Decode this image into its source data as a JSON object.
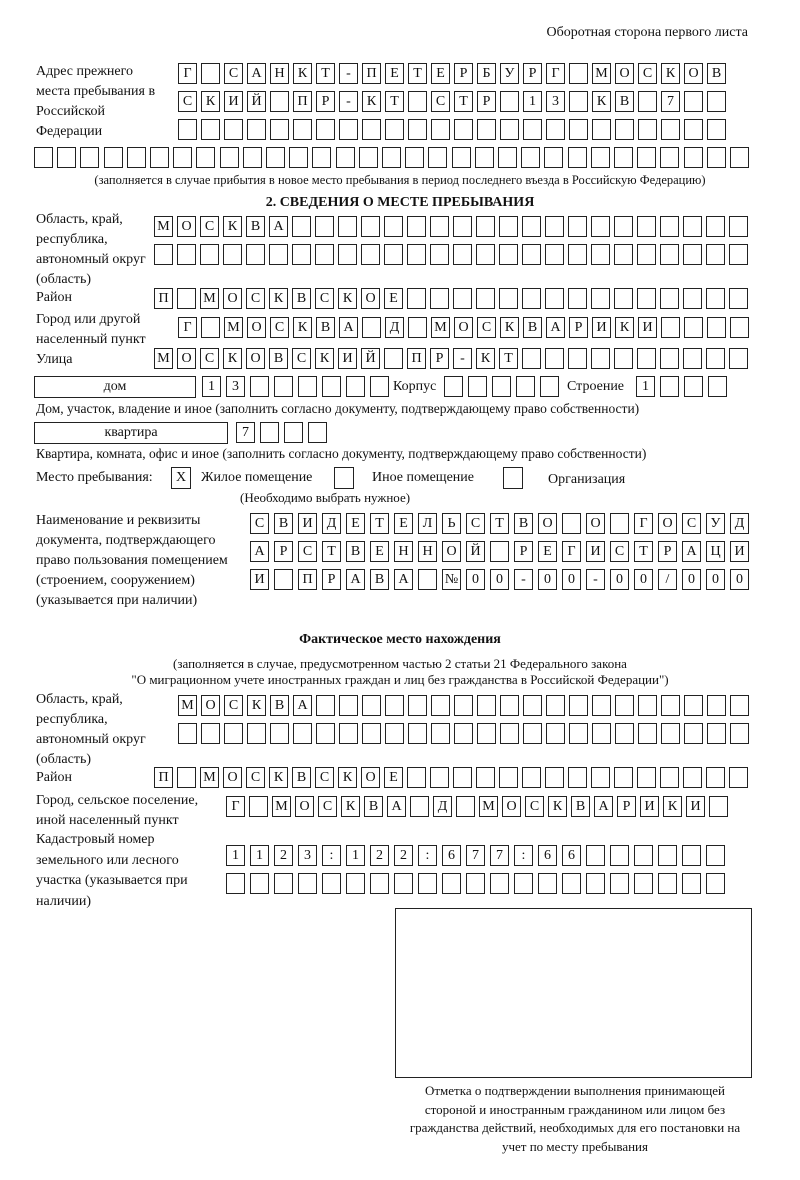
{
  "header": "Оборотная сторона первого листа",
  "prev_address": {
    "label": "Адрес прежнего места пребывания в Российской Федерации",
    "rows": [
      [
        "Г",
        "",
        "С",
        "А",
        "Н",
        "К",
        "Т",
        "-",
        "П",
        "Е",
        "Т",
        "Е",
        "Р",
        "Б",
        "У",
        "Р",
        "Г",
        "",
        "М",
        "О",
        "С",
        "К",
        "О",
        "В"
      ],
      [
        "С",
        "К",
        "И",
        "Й",
        "",
        "П",
        "Р",
        "-",
        "К",
        "Т",
        "",
        "С",
        "Т",
        "Р",
        "",
        "1",
        "3",
        "",
        "К",
        "В",
        "",
        "7",
        "",
        ""
      ],
      [
        "",
        "",
        "",
        "",
        "",
        "",
        "",
        "",
        "",
        "",
        "",
        "",
        "",
        "",
        "",
        "",
        "",
        "",
        "",
        "",
        "",
        "",
        "",
        ""
      ],
      [
        "",
        "",
        "",
        "",
        "",
        "",
        "",
        "",
        "",
        "",
        "",
        "",
        "",
        "",
        "",
        "",
        "",
        "",
        "",
        "",
        "",
        "",
        "",
        "",
        "",
        "",
        "",
        "",
        "",
        "",
        ""
      ]
    ],
    "note": "(заполняется в случае прибытия в новое место пребывания в период последнего въезда в Российскую Федерацию)"
  },
  "section2": {
    "title": "2. СВЕДЕНИЯ О МЕСТЕ ПРЕБЫВАНИЯ",
    "region_label": "Область, край, республика, автономный округ (область)",
    "region_rows": [
      [
        "М",
        "О",
        "С",
        "К",
        "В",
        "А",
        "",
        "",
        "",
        "",
        "",
        "",
        "",
        "",
        "",
        "",
        "",
        "",
        "",
        "",
        "",
        "",
        "",
        "",
        "",
        ""
      ],
      [
        "",
        "",
        "",
        "",
        "",
        "",
        "",
        "",
        "",
        "",
        "",
        "",
        "",
        "",
        "",
        "",
        "",
        "",
        "",
        "",
        "",
        "",
        "",
        "",
        "",
        ""
      ]
    ],
    "district_label": "Район",
    "district_row": [
      "П",
      "",
      "М",
      "О",
      "С",
      "К",
      "В",
      "С",
      "К",
      "О",
      "Е",
      "",
      "",
      "",
      "",
      "",
      "",
      "",
      "",
      "",
      "",
      "",
      "",
      "",
      "",
      ""
    ],
    "city_label": "Город или другой населенный пункт",
    "city_row": [
      "Г",
      "",
      "М",
      "О",
      "С",
      "К",
      "В",
      "А",
      "",
      "Д",
      "",
      "М",
      "О",
      "С",
      "К",
      "В",
      "А",
      "Р",
      "И",
      "К",
      "И",
      "",
      "",
      "",
      ""
    ],
    "street_label": "Улица",
    "street_row": [
      "М",
      "О",
      "С",
      "К",
      "О",
      "В",
      "С",
      "К",
      "И",
      "Й",
      "",
      "П",
      "Р",
      "-",
      "К",
      "Т",
      "",
      "",
      "",
      "",
      "",
      "",
      "",
      "",
      "",
      ""
    ],
    "house_type": "дом",
    "house_cells": [
      "1",
      "3",
      "",
      "",
      "",
      "",
      "",
      ""
    ],
    "korpus_label": "Корпус",
    "korpus_cells": [
      "",
      "",
      "",
      "",
      ""
    ],
    "building_label": "Строение",
    "building_cells": [
      "1",
      "",
      "",
      ""
    ],
    "house_note": "Дом, участок, владение и иное (заполнить согласно документу, подтверждающему право собственности)",
    "apt_type": "квартира",
    "apt_cells": [
      "7",
      "",
      "",
      ""
    ],
    "apt_note": "Квартира, комната, офис и иное (заполнить согласно документу, подтверждающему право собственности)",
    "stay_label": "Место пребывания:",
    "options": [
      {
        "label": "Жилое помещение",
        "mark": "Х"
      },
      {
        "label": "Иное помещение",
        "mark": ""
      },
      {
        "label": "Организация",
        "mark": ""
      }
    ],
    "choose_note": "(Необходимо выбрать нужное)",
    "doc_label": "Наименование и реквизиты документа, подтверждающего право пользования помещением (строением, сооружением) (указывается при наличии)",
    "doc_rows": [
      [
        "С",
        "В",
        "И",
        "Д",
        "Е",
        "Т",
        "Е",
        "Л",
        "Ь",
        "С",
        "Т",
        "В",
        "О",
        "",
        "О",
        "",
        "Г",
        "О",
        "С",
        "У",
        "Д"
      ],
      [
        "А",
        "Р",
        "С",
        "Т",
        "В",
        "Е",
        "Н",
        "Н",
        "О",
        "Й",
        "",
        "Р",
        "Е",
        "Г",
        "И",
        "С",
        "Т",
        "Р",
        "А",
        "Ц",
        "И"
      ],
      [
        "И",
        "",
        "П",
        "Р",
        "А",
        "В",
        "А",
        "",
        "№",
        "0",
        "0",
        "-",
        "0",
        "0",
        "-",
        "0",
        "0",
        "/",
        "0",
        "0",
        "0"
      ]
    ]
  },
  "actual": {
    "title": "Фактическое место нахождения",
    "note1": "(заполняется в случае, предусмотренном частью 2 статьи 21 Федерального закона",
    "note2": "\"О миграционном учете иностранных граждан и лиц без гражданства в Российской Федерации\")",
    "region_label": "Область, край, республика, автономный округ (область)",
    "region_rows": [
      [
        "М",
        "О",
        "С",
        "К",
        "В",
        "А",
        "",
        "",
        "",
        "",
        "",
        "",
        "",
        "",
        "",
        "",
        "",
        "",
        "",
        "",
        "",
        "",
        "",
        "",
        ""
      ],
      [
        "",
        "",
        "",
        "",
        "",
        "",
        "",
        "",
        "",
        "",
        "",
        "",
        "",
        "",
        "",
        "",
        "",
        "",
        "",
        "",
        "",
        "",
        "",
        "",
        ""
      ]
    ],
    "district_label": "Район",
    "district_row": [
      "П",
      "",
      "М",
      "О",
      "С",
      "К",
      "В",
      "С",
      "К",
      "О",
      "Е",
      "",
      "",
      "",
      "",
      "",
      "",
      "",
      "",
      "",
      "",
      "",
      "",
      "",
      "",
      ""
    ],
    "city_label": "Город, сельское поселение, иной населенный пункт",
    "city_row": [
      "Г",
      "",
      "М",
      "О",
      "С",
      "К",
      "В",
      "А",
      "",
      "Д",
      "",
      "М",
      "О",
      "С",
      "К",
      "В",
      "А",
      "Р",
      "И",
      "К",
      "И",
      ""
    ],
    "cadastral_label": "Кадастровый номер земельного или лесного участка (указывается при наличии)",
    "cadastral_rows": [
      [
        "1",
        "1",
        "2",
        "3",
        ":",
        "1",
        "2",
        "2",
        ":",
        "6",
        "7",
        "7",
        ":",
        "6",
        "6",
        "",
        "",
        "",
        "",
        "",
        ""
      ],
      [
        "",
        "",
        "",
        "",
        "",
        "",
        "",
        "",
        "",
        "",
        "",
        "",
        "",
        "",
        "",
        "",
        "",
        "",
        "",
        "",
        ""
      ]
    ]
  },
  "confirmation_note": "Отметка о подтверждении выполнения принимающей стороной и иностранным гражданином или лицом без гражданства действий, необходимых для его постановки на учет по месту пребывания"
}
